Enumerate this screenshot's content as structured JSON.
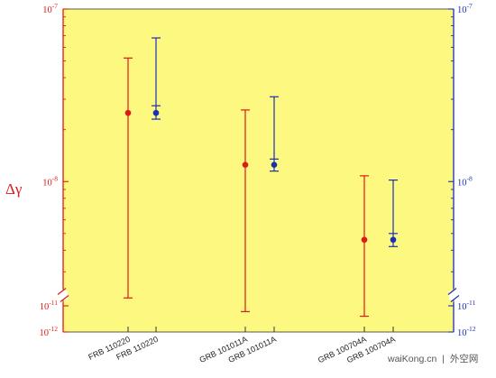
{
  "chart_data": {
    "type": "scatter",
    "ylabel": "Δγ",
    "y_scale": "log, broken axis",
    "categories": [
      "FRB 110220",
      "FRB 110220",
      "GRB 101011A",
      "GRB 101011A",
      "GRB 100704A",
      "GRB 100704A"
    ],
    "left_ticks": [
      {
        "base": "10",
        "exp": "-7",
        "value": 1e-07
      },
      {
        "base": "10",
        "exp": "-8",
        "value": 1e-08
      },
      {
        "base": "10",
        "exp": "-11",
        "value": 1e-11
      },
      {
        "base": "10",
        "exp": "-12",
        "value": 1e-12
      }
    ],
    "right_ticks": [
      {
        "base": "10",
        "exp": "-7",
        "value": 1e-07
      },
      {
        "base": "10",
        "exp": "-8",
        "value": 1e-08
      },
      {
        "base": "10",
        "exp": "-11",
        "value": 1e-11
      },
      {
        "base": "10",
        "exp": "-12",
        "value": 1e-12
      }
    ],
    "series": [
      {
        "color": "#e01818",
        "points": [
          {
            "category_index": 0,
            "y": 2.5e-08,
            "y_low": 2e-11,
            "y_high": 5.2e-08
          },
          {
            "category_index": 2,
            "y": 1.25e-08,
            "y_low": 6e-12,
            "y_high": 2.6e-08
          },
          {
            "category_index": 4,
            "y": 4.6e-09,
            "y_low": 4e-12,
            "y_high": 1.08e-08
          }
        ]
      },
      {
        "color": "#1a2fb8",
        "points": [
          {
            "category_index": 1,
            "y": 2.5e-08,
            "y_low": 2.3e-08,
            "y_high": 6.8e-08,
            "y_low2": 2.75e-08
          },
          {
            "category_index": 3,
            "y": 1.25e-08,
            "y_low": 1.15e-08,
            "y_high": 3.1e-08,
            "y_low2": 1.35e-08
          },
          {
            "category_index": 5,
            "y": 4.6e-09,
            "y_low": 4.2e-09,
            "y_high": 1.02e-08,
            "y_low2": 5e-09
          }
        ]
      }
    ],
    "plot_background": "#fcf880",
    "left_axis_color": "#e01818",
    "right_axis_color": "#1a2fb8"
  },
  "watermark": {
    "site": "waiKong.cn",
    "separator": "|",
    "name": "外空网"
  }
}
